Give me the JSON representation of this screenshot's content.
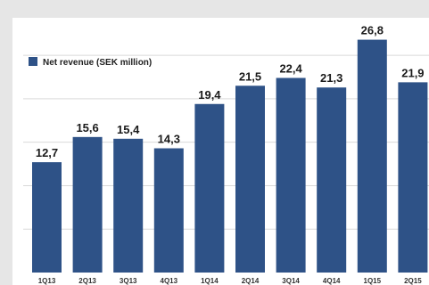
{
  "chart_data": {
    "type": "bar",
    "categories": [
      "1Q13",
      "2Q13",
      "3Q13",
      "4Q13",
      "1Q14",
      "2Q14",
      "3Q14",
      "4Q14",
      "1Q15",
      "2Q15"
    ],
    "series": [
      {
        "name": "Net revenue (SEK million)",
        "values": [
          12.7,
          15.6,
          15.4,
          14.3,
          19.4,
          21.5,
          22.4,
          21.3,
          26.8,
          21.9
        ],
        "labels": [
          "12,7",
          "15,6",
          "15,4",
          "14,3",
          "19,4",
          "21,5",
          "22,4",
          "21,3",
          "26,8",
          "21,9"
        ],
        "color": "#2e5287"
      }
    ],
    "title": "",
    "xlabel": "",
    "ylabel": "",
    "ylim": [
      0,
      28.5
    ],
    "grid": true,
    "legend_position": "top-left"
  },
  "colors": {
    "bar": "#2e5287",
    "background": "#e6e6e6",
    "panel": "#ffffff",
    "grid": "#d9d9d9"
  }
}
